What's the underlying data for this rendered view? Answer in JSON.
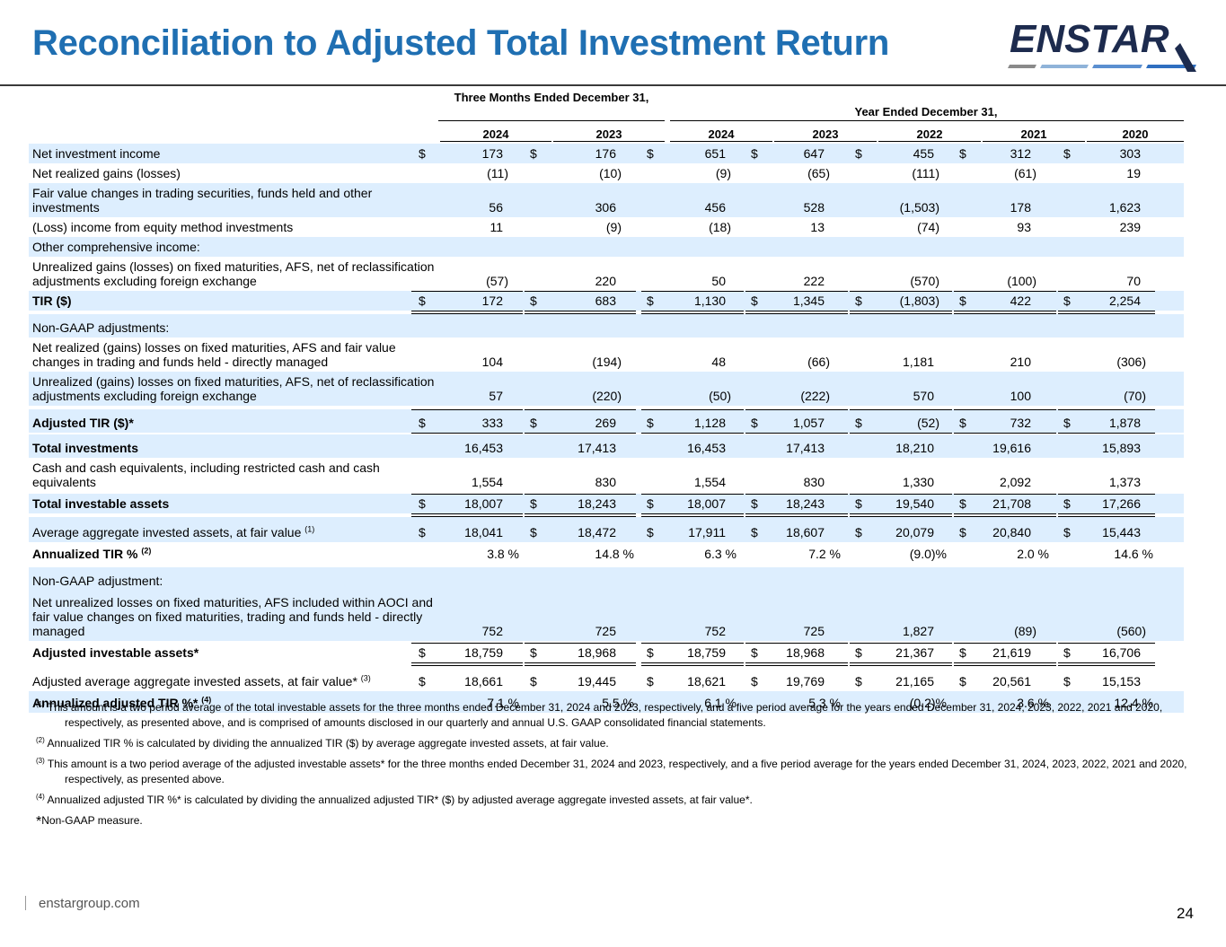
{
  "title": "Reconciliation to Adjusted Total Investment Return",
  "logo_text": "ENSTAR",
  "colors": {
    "title": "#1f6fb2",
    "shade": "#ddeefe",
    "logo_navy": "#1d2b4e"
  },
  "table": {
    "group_three_months": "Three Months Ended December 31,",
    "group_year": "Year Ended December 31,",
    "years": [
      "2024",
      "2023",
      "2024",
      "2023",
      "2022",
      "2021",
      "2020"
    ],
    "rows": [
      {
        "label": "Net investment income",
        "values": [
          "173",
          "176",
          "651",
          "647",
          "455",
          "312",
          "303"
        ],
        "dollar": true,
        "shade": true
      },
      {
        "label": "Net realized gains (losses)",
        "values": [
          "(11)",
          "(10)",
          "(9)",
          "(65)",
          "(111)",
          "(61)",
          "19"
        ]
      },
      {
        "label": "Fair value changes in trading securities, funds held and other investments",
        "values": [
          "56",
          "306",
          "456",
          "528",
          "(1,503)",
          "178",
          "1,623"
        ],
        "shade": true
      },
      {
        "label": "(Loss) income from equity method investments",
        "values": [
          "11",
          "(9)",
          "(18)",
          "13",
          "(74)",
          "93",
          "239"
        ]
      },
      {
        "label": "Other comprehensive income:",
        "values": [],
        "shade": true
      },
      {
        "label": "Unrealized gains (losses) on fixed maturities, AFS, net of reclassification adjustments excluding foreign exchange",
        "values": [
          "(57)",
          "220",
          "50",
          "222",
          "(570)",
          "(100)",
          "70"
        ]
      },
      {
        "label": "TIR ($)",
        "values": [
          "172",
          "683",
          "1,130",
          "1,345",
          "(1,803)",
          "422",
          "2,254"
        ],
        "dollar": true,
        "shade": true,
        "bold": true
      },
      {
        "label": "Non-GAAP adjustments:",
        "values": [],
        "shade": true
      },
      {
        "label": "Net realized (gains) losses on fixed maturities, AFS and fair value changes in trading and funds held - directly managed",
        "values": [
          "104",
          "(194)",
          "48",
          "(66)",
          "1,181",
          "210",
          "(306)"
        ]
      },
      {
        "label": "Unrealized (gains) losses on fixed maturities, AFS, net of reclassification adjustments excluding foreign exchange",
        "values": [
          "57",
          "(220)",
          "(50)",
          "(222)",
          "570",
          "100",
          "(70)"
        ],
        "shade": true
      },
      {
        "label": "Adjusted TIR ($)*",
        "values": [
          "333",
          "269",
          "1,128",
          "1,057",
          "(52)",
          "732",
          "1,878"
        ],
        "dollar": true,
        "shade": true,
        "bold": true
      },
      {
        "label": "Total investments",
        "values": [
          "16,453",
          "17,413",
          "16,453",
          "17,413",
          "18,210",
          "19,616",
          "15,893"
        ],
        "shade": true,
        "bold": true
      },
      {
        "label": "Cash and cash equivalents, including restricted cash and cash equivalents",
        "values": [
          "1,554",
          "830",
          "1,554",
          "830",
          "1,330",
          "2,092",
          "1,373"
        ]
      },
      {
        "label": "Total investable assets",
        "values": [
          "18,007",
          "18,243",
          "18,007",
          "18,243",
          "19,540",
          "21,708",
          "17,266"
        ],
        "dollar": true,
        "shade": true,
        "bold": true
      },
      {
        "label": "Average aggregate invested assets, at fair value",
        "sup": "(1)",
        "values": [
          "18,041",
          "18,472",
          "17,911",
          "18,607",
          "20,079",
          "20,840",
          "15,443"
        ],
        "dollar": true,
        "shade": true
      },
      {
        "label": "Annualized TIR %",
        "sup": "(2)",
        "values": [
          "3.8 %",
          "14.8 %",
          "6.3 %",
          "7.2 %",
          "(9.0)%",
          "2.0 %",
          "14.6 %"
        ],
        "bold": true
      },
      {
        "label": "Non-GAAP adjustment:",
        "values": [],
        "shade": true
      },
      {
        "label": "Net unrealized losses on fixed maturities, AFS included within AOCI and fair value changes on fixed maturities, trading and funds held - directly managed",
        "values": [
          "752",
          "725",
          "752",
          "725",
          "1,827",
          "(89)",
          "(560)"
        ],
        "shade": true
      },
      {
        "label": "Adjusted investable assets*",
        "values": [
          "18,759",
          "18,968",
          "18,759",
          "18,968",
          "21,367",
          "21,619",
          "16,706"
        ],
        "dollar": true,
        "bold": true
      },
      {
        "label": "Adjusted average aggregate invested assets, at fair value*",
        "sup": "(3)",
        "values": [
          "18,661",
          "19,445",
          "18,621",
          "19,769",
          "21,165",
          "20,561",
          "15,153"
        ],
        "dollar": true
      },
      {
        "label": "Annualized adjusted TIR %*",
        "sup": "(4)",
        "values": [
          "7.1 %",
          "5.5 %",
          "6.1 %",
          "5.3 %",
          "(0.2)%",
          "3.6 %",
          "12.4 %"
        ],
        "shade": true,
        "bold": true
      }
    ]
  },
  "footnotes": [
    {
      "marker": "(1)",
      "text": "This amount is a two period average of the total investable assets for the three months ended December 31, 2024 and 2023, respectively, and a five period average for the years ended December 31, 2024, 2023, 2022, 2021 and 2020, respectively, as presented above, and is comprised of amounts disclosed in our quarterly and annual U.S. GAAP consolidated financial statements."
    },
    {
      "marker": "(2)",
      "text": "Annualized TIR % is calculated by dividing the annualized TIR ($) by average aggregate invested assets, at fair value."
    },
    {
      "marker": "(3)",
      "text": "This amount is a two period average of the adjusted investable assets* for the three months ended December 31, 2024 and 2023, respectively, and a five period average for the years ended December 31, 2024, 2023, 2022, 2021 and 2020, respectively, as presented above."
    },
    {
      "marker": "(4)",
      "text": "Annualized adjusted TIR %* is calculated by dividing the annualized adjusted TIR* ($) by adjusted average aggregate invested assets, at fair value*."
    }
  ],
  "star_note": {
    "marker": "*",
    "text": "Non-GAAP measure."
  },
  "footer_text": "enstargroup.com",
  "page_number": "24"
}
